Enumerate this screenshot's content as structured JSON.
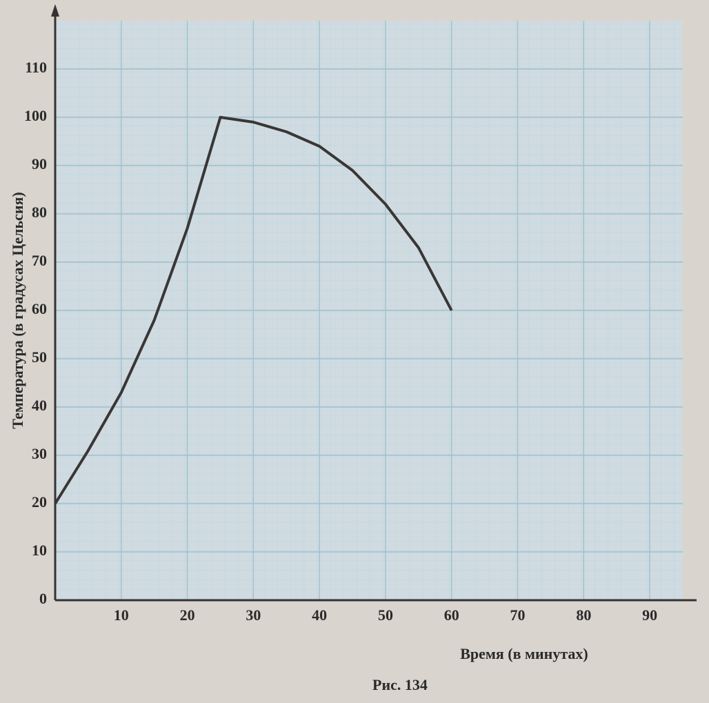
{
  "chart_data": {
    "type": "line",
    "caption": "Рис. 134",
    "x_label": "Время (в минутах)",
    "y_label": "Температура (в градусах Цельсия)",
    "x": [
      0,
      5,
      10,
      15,
      20,
      25,
      30,
      35,
      40,
      45,
      50,
      55,
      60
    ],
    "series": [
      {
        "color": "#3a3636",
        "values": [
          20,
          31,
          43,
          58,
          77,
          100,
          99,
          97,
          94,
          89,
          82,
          73,
          60
        ]
      }
    ],
    "xlim": [
      0,
      95
    ],
    "ylim": [
      0,
      120
    ],
    "xticks": [
      10,
      20,
      30,
      40,
      50,
      60,
      70,
      80,
      90
    ],
    "yticks": [
      0,
      10,
      20,
      30,
      40,
      50,
      60,
      70,
      80,
      90,
      100,
      110
    ],
    "grid": true
  }
}
